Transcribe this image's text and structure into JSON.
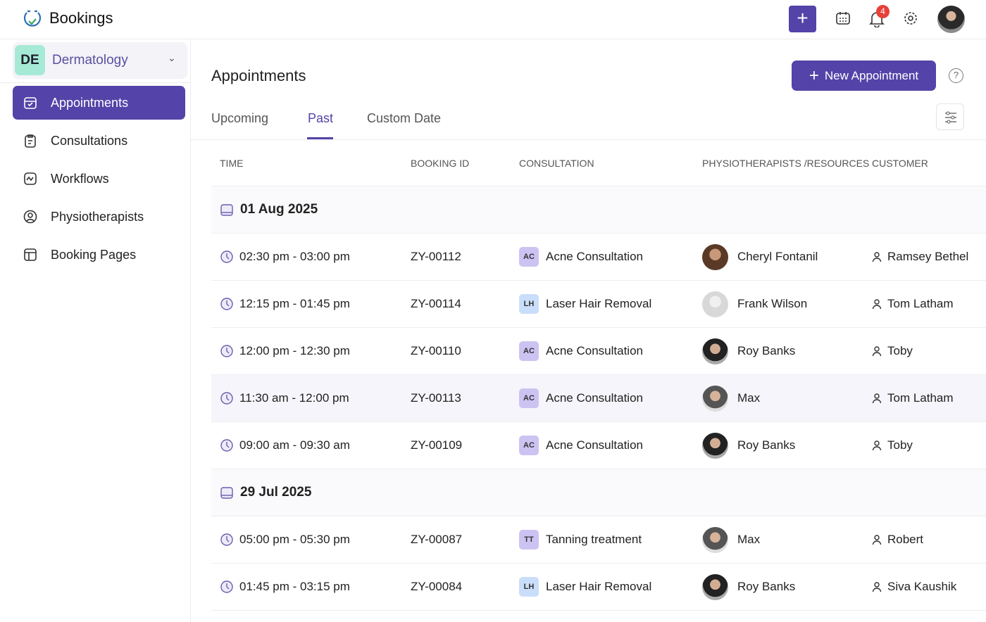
{
  "app": {
    "title": "Bookings",
    "notification_count": "4",
    "accent": "#5443a8"
  },
  "workspace": {
    "initials": "DE",
    "name": "Dermatology"
  },
  "sidebar": {
    "items": [
      {
        "label": "Appointments",
        "icon": "calendar-check-icon",
        "active": true
      },
      {
        "label": "Consultations",
        "icon": "clipboard-icon"
      },
      {
        "label": "Workflows",
        "icon": "workflow-icon"
      },
      {
        "label": "Physiotherapists",
        "icon": "user-circle-icon"
      },
      {
        "label": "Booking Pages",
        "icon": "layout-icon"
      }
    ]
  },
  "main": {
    "title": "Appointments",
    "new_button": "New Appointment",
    "help": "?",
    "tabs": [
      {
        "label": "Upcoming"
      },
      {
        "label": "Past",
        "active": true
      },
      {
        "label": "Custom Date"
      }
    ],
    "columns": [
      "TIME",
      "BOOKING ID",
      "CONSULTATION",
      "PHYSIOTHERAPISTS /RESOURCES",
      "CUSTOMER"
    ],
    "groups": [
      {
        "date": "01 Aug 2025",
        "rows": [
          {
            "time": "02:30 pm - 03:00 pm",
            "id": "ZY-00112",
            "badge": "AC",
            "consultation": "Acne Consultation",
            "physio": "Cheryl Fontanil",
            "customer": "Ramsey Bethel"
          },
          {
            "time": "12:15 pm - 01:45 pm",
            "id": "ZY-00114",
            "badge": "LH",
            "consultation": "Laser Hair Removal",
            "physio": "Frank Wilson",
            "customer": "Tom Latham"
          },
          {
            "time": "12:00 pm - 12:30 pm",
            "id": "ZY-00110",
            "badge": "AC",
            "consultation": "Acne Consultation",
            "physio": "Roy Banks",
            "customer": "Toby"
          },
          {
            "time": "11:30 am - 12:00 pm",
            "id": "ZY-00113",
            "badge": "AC",
            "consultation": "Acne Consultation",
            "physio": "Max",
            "customer": "Tom Latham"
          },
          {
            "time": "09:00 am - 09:30 am",
            "id": "ZY-00109",
            "badge": "AC",
            "consultation": "Acne Consultation",
            "physio": "Roy Banks",
            "customer": "Toby"
          }
        ]
      },
      {
        "date": "29 Jul 2025",
        "rows": [
          {
            "time": "05:00 pm - 05:30 pm",
            "id": "ZY-00087",
            "badge": "TT",
            "consultation": "Tanning treatment",
            "physio": "Max",
            "customer": "Robert"
          },
          {
            "time": "01:45 pm - 03:15 pm",
            "id": "ZY-00084",
            "badge": "LH",
            "consultation": "Laser Hair Removal",
            "physio": "Roy Banks",
            "customer": "Siva Kaushik"
          }
        ]
      }
    ]
  }
}
